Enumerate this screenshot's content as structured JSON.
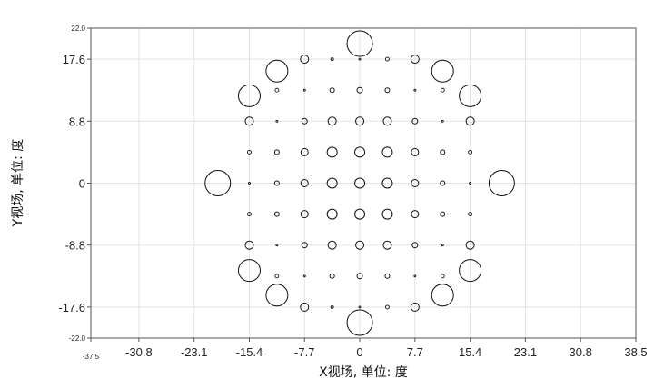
{
  "chart_data": {
    "type": "scatter",
    "xlabel": "X视场, 单位: 度",
    "ylabel": "Y视场, 单位: 度",
    "xlim": [
      -37.5,
      38.5
    ],
    "ylim": [
      -22.0,
      22.0
    ],
    "grid": true,
    "x_ticks": [
      "-37.5",
      "-30.8",
      "-23.1",
      "-15.4",
      "-7.7",
      "0",
      "7.7",
      "15.4",
      "23.1",
      "30.8",
      "38.5"
    ],
    "x_tick_values": [
      -37.5,
      -30.8,
      -23.1,
      -15.4,
      -7.7,
      0,
      7.7,
      15.4,
      23.1,
      30.8,
      38.5
    ],
    "y_ticks": [
      "22.0",
      "17.6",
      "8.8",
      "0",
      "-8.8",
      "-17.6",
      "-22.0"
    ],
    "y_tick_values": [
      22.0,
      17.6,
      8.8,
      0,
      -8.8,
      -17.6,
      -22.0
    ],
    "marker": "open-circle",
    "series": [
      {
        "values": [
          {
            "x": 0,
            "y": 19.8,
            "size": 14
          },
          {
            "x": 0,
            "y": -19.8,
            "size": 14
          },
          {
            "x": -19.8,
            "y": 0,
            "size": 14
          },
          {
            "x": 19.8,
            "y": 0,
            "size": 14
          },
          {
            "x": -11.55,
            "y": 15.9,
            "size": 12
          },
          {
            "x": 11.55,
            "y": 15.9,
            "size": 12
          },
          {
            "x": -11.55,
            "y": -15.9,
            "size": 12
          },
          {
            "x": 11.55,
            "y": -15.9,
            "size": 12
          },
          {
            "x": -15.4,
            "y": 12.4,
            "size": 12
          },
          {
            "x": 15.4,
            "y": 12.4,
            "size": 12
          },
          {
            "x": -15.4,
            "y": -12.4,
            "size": 12
          },
          {
            "x": 15.4,
            "y": -12.4,
            "size": 12
          },
          {
            "x": -15.4,
            "y": 8.8,
            "size": 4.5
          },
          {
            "x": 15.4,
            "y": 8.8,
            "size": 4.5
          },
          {
            "x": -15.4,
            "y": -8.8,
            "size": 4.5
          },
          {
            "x": 15.4,
            "y": -8.8,
            "size": 4.5
          },
          {
            "x": -15.4,
            "y": 4.4,
            "size": 2
          },
          {
            "x": 15.4,
            "y": 4.4,
            "size": 2
          },
          {
            "x": -15.4,
            "y": -4.4,
            "size": 2
          },
          {
            "x": 15.4,
            "y": -4.4,
            "size": 2
          },
          {
            "x": -15.4,
            "y": 0,
            "size": 1
          },
          {
            "x": 15.4,
            "y": 0,
            "size": 1
          },
          {
            "x": -7.7,
            "y": 17.6,
            "size": 4.5
          },
          {
            "x": -3.85,
            "y": 17.6,
            "size": 1.5
          },
          {
            "x": 0,
            "y": 17.6,
            "size": 1
          },
          {
            "x": 3.85,
            "y": 17.6,
            "size": 2
          },
          {
            "x": 7.7,
            "y": 17.6,
            "size": 4.5
          },
          {
            "x": -7.7,
            "y": -17.6,
            "size": 4.5
          },
          {
            "x": -3.85,
            "y": -17.6,
            "size": 1.5
          },
          {
            "x": 0,
            "y": -17.6,
            "size": 1
          },
          {
            "x": 3.85,
            "y": -17.6,
            "size": 2
          },
          {
            "x": 7.7,
            "y": -17.6,
            "size": 4.5
          },
          {
            "x": -11.55,
            "y": 13.2,
            "size": 2
          },
          {
            "x": -7.7,
            "y": 13.2,
            "size": 1
          },
          {
            "x": -3.85,
            "y": 13.2,
            "size": 2.5
          },
          {
            "x": 0,
            "y": 13.2,
            "size": 3
          },
          {
            "x": 3.85,
            "y": 13.2,
            "size": 2.5
          },
          {
            "x": 7.7,
            "y": 13.2,
            "size": 1
          },
          {
            "x": 11.55,
            "y": 13.2,
            "size": 2
          },
          {
            "x": -11.55,
            "y": -13.2,
            "size": 2
          },
          {
            "x": -7.7,
            "y": -13.2,
            "size": 1
          },
          {
            "x": -3.85,
            "y": -13.2,
            "size": 2.5
          },
          {
            "x": 0,
            "y": -13.2,
            "size": 3
          },
          {
            "x": 3.85,
            "y": -13.2,
            "size": 2.5
          },
          {
            "x": 7.7,
            "y": -13.2,
            "size": 1
          },
          {
            "x": 11.55,
            "y": -13.2,
            "size": 2
          },
          {
            "x": -11.55,
            "y": 8.8,
            "size": 1
          },
          {
            "x": -7.7,
            "y": 8.8,
            "size": 3
          },
          {
            "x": -3.85,
            "y": 8.8,
            "size": 4.5
          },
          {
            "x": 0,
            "y": 8.8,
            "size": 4.5
          },
          {
            "x": 3.85,
            "y": 8.8,
            "size": 4.5
          },
          {
            "x": 7.7,
            "y": 8.8,
            "size": 3
          },
          {
            "x": 11.55,
            "y": 8.8,
            "size": 1
          },
          {
            "x": -11.55,
            "y": -8.8,
            "size": 1
          },
          {
            "x": -7.7,
            "y": -8.8,
            "size": 3
          },
          {
            "x": -3.85,
            "y": -8.8,
            "size": 4.5
          },
          {
            "x": 0,
            "y": -8.8,
            "size": 4.5
          },
          {
            "x": 3.85,
            "y": -8.8,
            "size": 4.5
          },
          {
            "x": 7.7,
            "y": -8.8,
            "size": 3
          },
          {
            "x": 11.55,
            "y": -8.8,
            "size": 1
          },
          {
            "x": -11.55,
            "y": 4.4,
            "size": 2.5
          },
          {
            "x": -7.7,
            "y": 4.4,
            "size": 4
          },
          {
            "x": -3.85,
            "y": 4.4,
            "size": 5.5
          },
          {
            "x": 0,
            "y": 4.4,
            "size": 5.5
          },
          {
            "x": 3.85,
            "y": 4.4,
            "size": 5.5
          },
          {
            "x": 7.7,
            "y": 4.4,
            "size": 4
          },
          {
            "x": 11.55,
            "y": 4.4,
            "size": 2.5
          },
          {
            "x": -11.55,
            "y": -4.4,
            "size": 2.5
          },
          {
            "x": -7.7,
            "y": -4.4,
            "size": 4
          },
          {
            "x": -3.85,
            "y": -4.4,
            "size": 5.5
          },
          {
            "x": 0,
            "y": -4.4,
            "size": 5.5
          },
          {
            "x": 3.85,
            "y": -4.4,
            "size": 5.5
          },
          {
            "x": 7.7,
            "y": -4.4,
            "size": 4
          },
          {
            "x": 11.55,
            "y": -4.4,
            "size": 2.5
          },
          {
            "x": -11.55,
            "y": 0,
            "size": 2.5
          },
          {
            "x": -7.7,
            "y": 0,
            "size": 4
          },
          {
            "x": -3.85,
            "y": 0,
            "size": 5.5
          },
          {
            "x": 0,
            "y": 0,
            "size": 5.5
          },
          {
            "x": 3.85,
            "y": 0,
            "size": 5.5
          },
          {
            "x": 7.7,
            "y": 0,
            "size": 4
          },
          {
            "x": 11.55,
            "y": 0,
            "size": 2.5
          }
        ]
      }
    ]
  }
}
